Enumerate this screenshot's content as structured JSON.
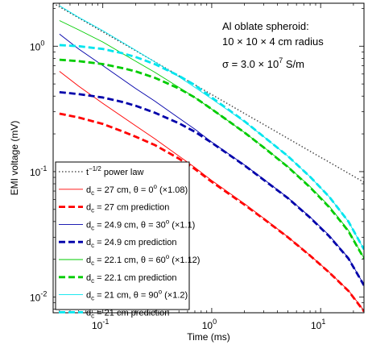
{
  "chart_data": {
    "type": "line",
    "xscale": "log",
    "yscale": "log",
    "xlabel": "Time (ms)",
    "ylabel": "EMI voltage (mV)",
    "xlim": [
      0.035,
      25
    ],
    "ylim": [
      0.0075,
      2.2
    ],
    "xticks": [
      {
        "value": 0.1,
        "base": "10",
        "exp": "-1"
      },
      {
        "value": 1,
        "base": "10",
        "exp": "0"
      },
      {
        "value": 10,
        "base": "10",
        "exp": "1"
      }
    ],
    "yticks": [
      {
        "value": 0.01,
        "base": "10",
        "exp": "-2"
      },
      {
        "value": 0.1,
        "base": "10",
        "exp": "-1"
      },
      {
        "value": 1,
        "base": "10",
        "exp": "0"
      }
    ],
    "annotation": {
      "line1": "Al oblate spheroid:",
      "line2": "10 × 10 × 4 cm radius",
      "line3_pre": "σ = 3.0 × 10",
      "line3_exp": "7",
      "line3_post": " S/m"
    },
    "series": [
      {
        "color": "#333333",
        "dash": "dotted",
        "width": 1.3,
        "legend": {
          "pre": "t",
          "sup": "−1/2",
          "post": " power law"
        },
        "x": [
          0.035,
          25
        ],
        "y": [
          2.2,
          0.0823
        ]
      },
      {
        "color": "#ff0000",
        "dash": "solid",
        "width": 0.9,
        "legend": {
          "pre": "d",
          "sub": "c",
          "mid": " = 27 cm,  θ = 0",
          "sup": "o",
          "post": " (×1.08)"
        },
        "x": [
          0.04,
          0.06,
          0.1,
          0.2,
          0.3,
          0.5,
          0.7,
          1,
          2,
          3,
          5,
          8,
          12,
          18,
          25
        ],
        "y": [
          0.63,
          0.48,
          0.35,
          0.232,
          0.183,
          0.133,
          0.108,
          0.085,
          0.0555,
          0.0425,
          0.0302,
          0.0215,
          0.0158,
          0.0113,
          0.0078
        ]
      },
      {
        "color": "#ff0000",
        "dash": "dashed",
        "width": 2.8,
        "legend": {
          "pre": "d",
          "sub": "c",
          "mid": " = 27 cm prediction"
        },
        "x": [
          0.04,
          0.06,
          0.1,
          0.15,
          0.2,
          0.3,
          0.5,
          0.7,
          1,
          2,
          3,
          5,
          8,
          12,
          18,
          25
        ],
        "y": [
          0.29,
          0.27,
          0.24,
          0.21,
          0.19,
          0.163,
          0.127,
          0.105,
          0.083,
          0.0545,
          0.042,
          0.03,
          0.0214,
          0.0157,
          0.0112,
          0.0077
        ]
      },
      {
        "color": "#0000aa",
        "dash": "solid",
        "width": 0.9,
        "legend": {
          "pre": "d",
          "sub": "c",
          "mid": " = 24.9 cm,  θ = 30",
          "sup": "o",
          "post": " (×1.1)"
        },
        "x": [
          0.04,
          0.06,
          0.1,
          0.2,
          0.3,
          0.5,
          0.7,
          1,
          2,
          3,
          5,
          8,
          12,
          18,
          25
        ],
        "y": [
          1.25,
          0.95,
          0.7,
          0.46,
          0.365,
          0.267,
          0.218,
          0.172,
          0.113,
          0.087,
          0.062,
          0.0435,
          0.031,
          0.0205,
          0.0125
        ]
      },
      {
        "color": "#0000aa",
        "dash": "dashed",
        "width": 2.8,
        "legend": {
          "pre": "d",
          "sub": "c",
          "mid": " = 24.9 cm prediction"
        },
        "x": [
          0.04,
          0.06,
          0.1,
          0.15,
          0.2,
          0.3,
          0.5,
          0.7,
          1,
          2,
          3,
          5,
          8,
          12,
          18,
          25
        ],
        "y": [
          0.43,
          0.415,
          0.39,
          0.36,
          0.335,
          0.295,
          0.243,
          0.208,
          0.17,
          0.112,
          0.086,
          0.0615,
          0.043,
          0.0305,
          0.0203,
          0.0124
        ]
      },
      {
        "color": "#00cc00",
        "dash": "solid",
        "width": 0.9,
        "legend": {
          "pre": "d",
          "sub": "c",
          "mid": " = 22.1 cm,  θ = 60",
          "sup": "o",
          "post": " (×1.12)"
        },
        "x": [
          0.04,
          0.06,
          0.1,
          0.2,
          0.3,
          0.5,
          0.7,
          1,
          2,
          3,
          5,
          8,
          12,
          18,
          25
        ],
        "y": [
          1.6,
          1.35,
          1.08,
          0.76,
          0.62,
          0.47,
          0.39,
          0.315,
          0.205,
          0.157,
          0.11,
          0.076,
          0.053,
          0.034,
          0.0205
        ]
      },
      {
        "color": "#00cc00",
        "dash": "dashed",
        "width": 2.8,
        "legend": {
          "pre": "d",
          "sub": "c",
          "mid": " = 22.1 cm prediction"
        },
        "x": [
          0.04,
          0.06,
          0.1,
          0.15,
          0.2,
          0.3,
          0.5,
          0.7,
          1,
          2,
          3,
          5,
          8,
          12,
          18,
          25
        ],
        "y": [
          0.78,
          0.76,
          0.72,
          0.67,
          0.63,
          0.56,
          0.46,
          0.39,
          0.315,
          0.205,
          0.156,
          0.109,
          0.075,
          0.052,
          0.0335,
          0.0203
        ]
      },
      {
        "color": "#00e5ee",
        "dash": "solid",
        "width": 0.9,
        "legend": {
          "pre": "d",
          "sub": "c",
          "mid": " = 21 cm,  θ = 90",
          "sup": "o",
          "post": " (×1.2)"
        },
        "x": [
          0.04,
          0.06,
          0.1,
          0.2,
          0.3,
          0.5,
          0.7,
          1,
          2,
          3,
          5,
          8,
          12,
          18,
          25
        ],
        "y": [
          2.1,
          1.7,
          1.33,
          0.93,
          0.75,
          0.57,
          0.47,
          0.38,
          0.25,
          0.19,
          0.133,
          0.091,
          0.063,
          0.04,
          0.024
        ]
      },
      {
        "color": "#00e5ee",
        "dash": "dashed",
        "width": 2.8,
        "legend": {
          "pre": "d",
          "sub": "c",
          "mid": " = 21 cm prediction"
        },
        "x": [
          0.04,
          0.06,
          0.1,
          0.15,
          0.2,
          0.3,
          0.5,
          0.7,
          1,
          2,
          3,
          5,
          8,
          12,
          18,
          25
        ],
        "y": [
          1.02,
          1.0,
          0.95,
          0.88,
          0.82,
          0.72,
          0.58,
          0.49,
          0.39,
          0.252,
          0.19,
          0.133,
          0.091,
          0.063,
          0.04,
          0.024
        ]
      }
    ]
  }
}
